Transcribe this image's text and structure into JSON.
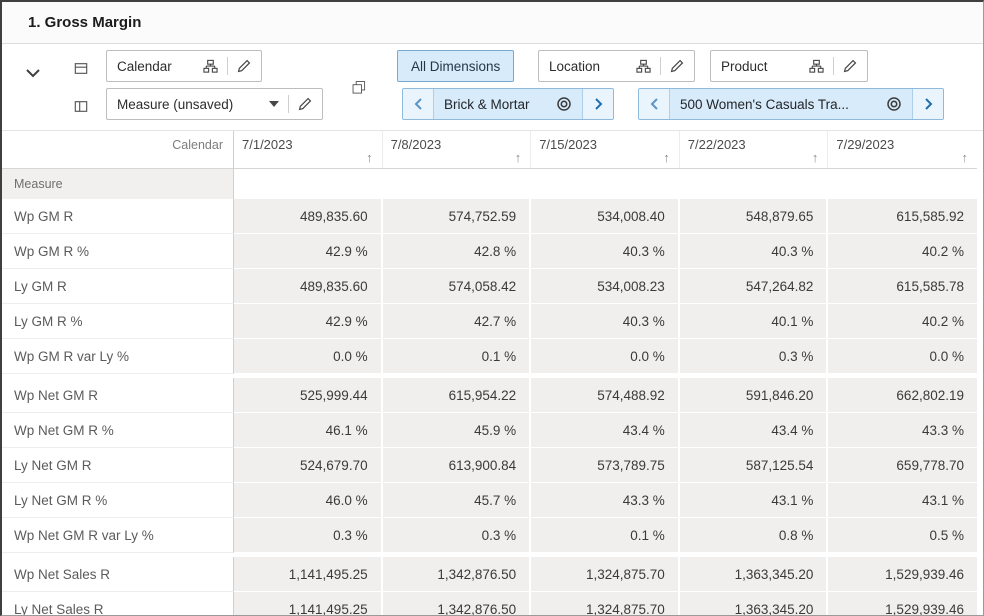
{
  "title": "1. Gross Margin",
  "colors": {
    "accent_blue": "#0572ce",
    "selected_chip_bg": "#d8ebfb",
    "selected_chip_border": "#7aa9cf",
    "data_cell_bg": "#f0efee"
  },
  "icons": {
    "sort_ascending": "↑"
  },
  "toolbar": {
    "calendar_tile": {
      "label": "Calendar"
    },
    "measure_dropdown": {
      "label": "Measure (unsaved)"
    },
    "all_dimensions_button": "All Dimensions",
    "location_tile": {
      "label": "Location",
      "selection": "Brick & Mortar"
    },
    "product_tile": {
      "label": "Product",
      "selection": "500 Women's Casuals Tra..."
    }
  },
  "table": {
    "corner_label": "Calendar",
    "row_dimension_label": "Measure",
    "columns": [
      "7/1/2023",
      "7/8/2023",
      "7/15/2023",
      "7/22/2023",
      "7/29/2023"
    ],
    "groups": [
      {
        "rows": [
          {
            "label": "Wp GM R",
            "values": [
              "489,835.60",
              "574,752.59",
              "534,008.40",
              "548,879.65",
              "615,585.92"
            ]
          },
          {
            "label": "Wp GM R %",
            "values": [
              "42.9 %",
              "42.8 %",
              "40.3 %",
              "40.3 %",
              "40.2 %"
            ]
          },
          {
            "label": "Ly GM R",
            "values": [
              "489,835.60",
              "574,058.42",
              "534,008.23",
              "547,264.82",
              "615,585.78"
            ]
          },
          {
            "label": "Ly GM R %",
            "values": [
              "42.9 %",
              "42.7 %",
              "40.3 %",
              "40.1 %",
              "40.2 %"
            ]
          },
          {
            "label": "Wp GM R var Ly %",
            "values": [
              "0.0 %",
              "0.1 %",
              "0.0 %",
              "0.3 %",
              "0.0 %"
            ]
          }
        ]
      },
      {
        "rows": [
          {
            "label": "Wp Net GM R",
            "values": [
              "525,999.44",
              "615,954.22",
              "574,488.92",
              "591,846.20",
              "662,802.19"
            ]
          },
          {
            "label": "Wp Net GM R %",
            "values": [
              "46.1 %",
              "45.9 %",
              "43.4 %",
              "43.4 %",
              "43.3 %"
            ]
          },
          {
            "label": "Ly Net GM R",
            "values": [
              "524,679.70",
              "613,900.84",
              "573,789.75",
              "587,125.54",
              "659,778.70"
            ]
          },
          {
            "label": "Ly Net GM R %",
            "values": [
              "46.0 %",
              "45.7 %",
              "43.3 %",
              "43.1 %",
              "43.1 %"
            ]
          },
          {
            "label": "Wp Net GM R var Ly %",
            "values": [
              "0.3 %",
              "0.3 %",
              "0.1 %",
              "0.8 %",
              "0.5 %"
            ]
          }
        ]
      },
      {
        "rows": [
          {
            "label": "Wp Net Sales R",
            "values": [
              "1,141,495.25",
              "1,342,876.50",
              "1,324,875.70",
              "1,363,345.20",
              "1,529,939.46"
            ]
          },
          {
            "label": "Ly Net Sales R",
            "values": [
              "1,141,495.25",
              "1,342,876.50",
              "1,324,875.70",
              "1,363,345.20",
              "1,529,939.46"
            ]
          }
        ]
      }
    ]
  }
}
